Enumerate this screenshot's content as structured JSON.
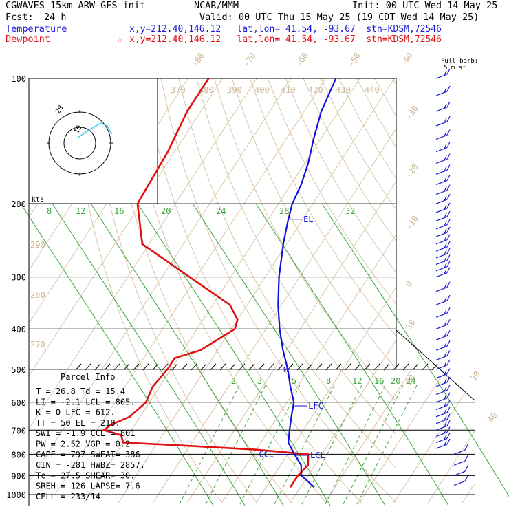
{
  "header": {
    "model": "CGWAVES 15km ARW-GFS init",
    "org": "NCAR/MMM",
    "init": "Init: 00 UTC Wed 14 May 25",
    "fcst_label": "Fcst:",
    "fcst_value": "24 h",
    "valid": "Valid: 00 UTC Thu 15 May 25 (19 CDT Wed 14 May 25)",
    "temp_label": "Temperature",
    "temp_loc": "x,y=212.40,146.12   lat,lon= 41.54, -93.67  stn=KDSM,72546",
    "dew_label": "Dewpoint",
    "dew_marker": "☆",
    "dew_loc": "x,y=212.40,146.12   lat,lon= 41.54, -93.67  stn=KDSM,72546",
    "barb_legend_1": "Full barb:",
    "barb_legend_2": "5 m s⁻¹"
  },
  "hodograph": {
    "label_kts": "kts",
    "ring_label_10": "10",
    "ring_label_20": "20"
  },
  "parcel": {
    "title": "Parcel Info",
    "rows": [
      "T  =   26.8 Td =  15.4",
      "LI =   -2.1 LCL =  805.",
      "K  =      0 LFC =  612.",
      "TT =     50 EL  =  218.",
      "SWI =  -1.9 CCL =  801",
      "PW =   2.52 VGP =   0.2",
      "CAPE =  797 SWEAT=  386",
      "CIN =  -281 HWBZ= 2857.",
      "Tc =   27.5 SHEAR=  30.",
      "SREH =  126 LAPSE=  7.6",
      "CELL = 233/14"
    ]
  },
  "chart_data": {
    "type": "skew-T log-p sounding",
    "title": "",
    "ylabel": "",
    "pressure_levels_hPa": [
      100,
      200,
      300,
      400,
      500,
      600,
      700,
      800,
      900,
      1000
    ],
    "pressure_tick_labels": [
      "100",
      "200",
      "300",
      "400",
      "500",
      "600",
      "700",
      "800",
      "900",
      "1000"
    ],
    "isotherm_labels_C": [
      "-80",
      "-70",
      "-60",
      "-50",
      "-40",
      "-30",
      "-20",
      "-10",
      "0",
      "10",
      "20",
      "30",
      "40"
    ],
    "theta_labels_K": [
      "370",
      "380",
      "390",
      "400",
      "410",
      "420",
      "430",
      "440",
      "290",
      "280",
      "270"
    ],
    "saturation_mixing_ratio_labels": [
      "8",
      "12",
      "16",
      "20",
      "24",
      "28",
      "32"
    ],
    "mixing_ratio_labels": [
      "2",
      "3",
      "5",
      "8",
      "12",
      "16",
      "20",
      "24"
    ],
    "levels": [
      {
        "name": "EL",
        "p": 218
      },
      {
        "name": "LFC",
        "p": 612
      },
      {
        "name": "LCL",
        "p": 805
      },
      {
        "name": "CCL",
        "p": 801
      }
    ],
    "level_labels": [
      "EL",
      "LFC",
      "LCL",
      "CCL"
    ],
    "series": [
      {
        "name": "Temperature",
        "color": "#1010e0",
        "points": [
          [
            960,
            4
          ],
          [
            900,
            -2
          ],
          [
            850,
            -4
          ],
          [
            800,
            -8
          ],
          [
            750,
            -12
          ],
          [
            700,
            -14
          ],
          [
            650,
            -16
          ],
          [
            600,
            -18
          ],
          [
            550,
            -22
          ],
          [
            500,
            -26
          ],
          [
            450,
            -31
          ],
          [
            400,
            -36
          ],
          [
            350,
            -41
          ],
          [
            300,
            -46
          ],
          [
            250,
            -51
          ],
          [
            220,
            -54
          ],
          [
            200,
            -56
          ],
          [
            180,
            -57
          ],
          [
            160,
            -59
          ],
          [
            140,
            -62
          ],
          [
            120,
            -65
          ],
          [
            100,
            -67
          ]
        ]
      },
      {
        "name": "Dewpoint",
        "color": "#e01010",
        "points": [
          [
            960,
            -3
          ],
          [
            900,
            -3
          ],
          [
            850,
            -2
          ],
          [
            800,
            -4
          ],
          [
            780,
            -20
          ],
          [
            760,
            -45
          ],
          [
            750,
            -60
          ],
          [
            720,
            -62
          ],
          [
            700,
            -68
          ],
          [
            680,
            -67
          ],
          [
            650,
            -63
          ],
          [
            600,
            -61
          ],
          [
            550,
            -62
          ],
          [
            500,
            -61
          ],
          [
            470,
            -61
          ],
          [
            450,
            -55
          ],
          [
            400,
            -49
          ],
          [
            380,
            -50
          ],
          [
            350,
            -55
          ],
          [
            300,
            -72
          ],
          [
            250,
            -92
          ],
          [
            200,
            -101
          ],
          [
            150,
            -102
          ],
          [
            120,
            -104
          ],
          [
            100,
            -104
          ]
        ]
      }
    ],
    "hodograph_trace": [
      [
        0.65,
        0.18
      ],
      [
        0.62,
        0.22
      ],
      [
        0.55,
        0.35
      ],
      [
        0.42,
        0.4
      ],
      [
        0.3,
        0.33
      ],
      [
        0.12,
        0.22
      ],
      [
        -0.05,
        0.1
      ]
    ],
    "wind_barb_levels_hPa": [
      100,
      110,
      120,
      130,
      140,
      150,
      160,
      170,
      180,
      190,
      200,
      210,
      220,
      230,
      240,
      250,
      260,
      270,
      280,
      290,
      300,
      325,
      350,
      375,
      400,
      425,
      450,
      475,
      500,
      525,
      550,
      575,
      600,
      625,
      650,
      675,
      700,
      725,
      750,
      775,
      800,
      850,
      900,
      950
    ]
  }
}
